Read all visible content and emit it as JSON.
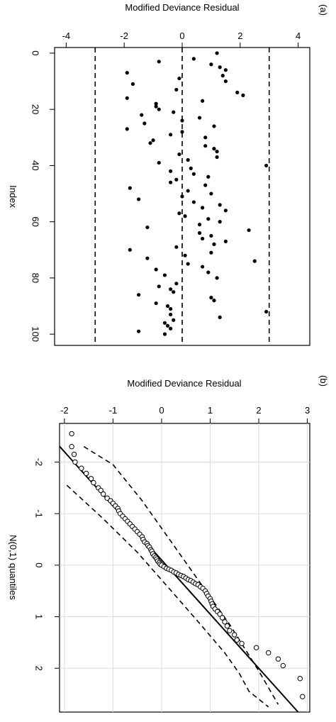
{
  "chart_data": [
    {
      "panel_label": "(a)",
      "type": "scatter",
      "title": "",
      "xlabel": "Modified Deviance Residual",
      "ylabel": "Index",
      "xlim": [
        -4.4,
        4.4
      ],
      "ylim": [
        -2,
        104
      ],
      "x_ticks": [
        -4,
        -2,
        0,
        2,
        4
      ],
      "y_ticks": [
        0,
        20,
        40,
        60,
        80,
        100
      ],
      "reference_lines": [
        -3,
        0,
        3
      ],
      "grid": false,
      "points": [
        [
          1.2,
          0
        ],
        [
          0.4,
          2
        ],
        [
          -0.8,
          3
        ],
        [
          1.0,
          4
        ],
        [
          1.3,
          5
        ],
        [
          1.5,
          6
        ],
        [
          -1.9,
          7
        ],
        [
          1.4,
          8
        ],
        [
          -0.1,
          9
        ],
        [
          1.5,
          10
        ],
        [
          -1.7,
          11
        ],
        [
          -0.2,
          13
        ],
        [
          1.9,
          14
        ],
        [
          2.1,
          15
        ],
        [
          -1.9,
          16
        ],
        [
          0.7,
          17
        ],
        [
          -0.9,
          18
        ],
        [
          -0.9,
          19
        ],
        [
          -0.8,
          20
        ],
        [
          -0.3,
          21
        ],
        [
          -1.4,
          22
        ],
        [
          0.6,
          23
        ],
        [
          0.0,
          24
        ],
        [
          -1.3,
          25
        ],
        [
          1.1,
          26
        ],
        [
          -1.9,
          27
        ],
        [
          0.0,
          28
        ],
        [
          -0.4,
          29
        ],
        [
          0.8,
          30
        ],
        [
          -1.0,
          31
        ],
        [
          -1.1,
          32
        ],
        [
          0.8,
          33
        ],
        [
          1.1,
          34
        ],
        [
          1.2,
          35
        ],
        [
          -0.1,
          36
        ],
        [
          1.2,
          37
        ],
        [
          0.2,
          38
        ],
        [
          -0.8,
          39
        ],
        [
          2.9,
          40
        ],
        [
          0.3,
          41
        ],
        [
          -0.4,
          42
        ],
        [
          0.4,
          43
        ],
        [
          0.9,
          44
        ],
        [
          -0.2,
          45
        ],
        [
          -0.4,
          46
        ],
        [
          0.8,
          47
        ],
        [
          -1.8,
          48
        ],
        [
          0.2,
          49
        ],
        [
          1.0,
          50
        ],
        [
          0.0,
          51
        ],
        [
          -1.5,
          52
        ],
        [
          0.4,
          53
        ],
        [
          1.3,
          54
        ],
        [
          0.7,
          55
        ],
        [
          1.5,
          56
        ],
        [
          -0.1,
          57
        ],
        [
          0.1,
          58
        ],
        [
          0.9,
          59
        ],
        [
          1.3,
          60
        ],
        [
          0.6,
          61
        ],
        [
          -1.2,
          62
        ],
        [
          2.3,
          63
        ],
        [
          0.6,
          64
        ],
        [
          1.0,
          65
        ],
        [
          0.7,
          66
        ],
        [
          1.5,
          67
        ],
        [
          1.1,
          68
        ],
        [
          -0.2,
          69
        ],
        [
          -1.8,
          70
        ],
        [
          1.0,
          71
        ],
        [
          0.1,
          72
        ],
        [
          -1.2,
          73
        ],
        [
          2.5,
          74
        ],
        [
          0.2,
          75
        ],
        [
          0.7,
          76
        ],
        [
          -0.9,
          77
        ],
        [
          0.9,
          78
        ],
        [
          -0.6,
          79
        ],
        [
          1.2,
          80
        ],
        [
          -0.2,
          82
        ],
        [
          -0.8,
          83
        ],
        [
          -0.4,
          84
        ],
        [
          -0.3,
          85
        ],
        [
          -1.5,
          86
        ],
        [
          1.0,
          87
        ],
        [
          1.1,
          88
        ],
        [
          -0.9,
          89
        ],
        [
          -0.5,
          90
        ],
        [
          -0.4,
          91
        ],
        [
          2.9,
          92
        ],
        [
          -0.4,
          93
        ],
        [
          1.3,
          94
        ],
        [
          -0.3,
          95
        ],
        [
          -0.6,
          96
        ],
        [
          -0.5,
          97
        ],
        [
          -0.4,
          98
        ],
        [
          -1.5,
          99
        ],
        [
          -0.6,
          100
        ]
      ]
    },
    {
      "panel_label": "(b)",
      "type": "scatter",
      "title": "",
      "xlabel": "Modified Deviance Residual",
      "ylabel": "N(0,1) quantiles",
      "xlim": [
        -2.1,
        3.05
      ],
      "ylim": [
        -2.75,
        2.85
      ],
      "x_ticks": [
        -2,
        -1,
        0,
        1,
        2,
        3
      ],
      "y_ticks": [
        -2,
        -1,
        0,
        1,
        2
      ],
      "grid": true,
      "reference_line": {
        "intercept": -0.1,
        "slope": 1.05
      },
      "envelope_lower": [
        [
          -1.6,
          -2.3
        ],
        [
          -1.0,
          -1.95
        ],
        [
          -0.4,
          -1.25
        ],
        [
          0.2,
          -0.45
        ],
        [
          0.8,
          0.35
        ],
        [
          1.4,
          1.15
        ],
        [
          1.7,
          1.6
        ],
        [
          2.0,
          2.05
        ],
        [
          2.4,
          2.7
        ]
      ],
      "envelope_upper": [
        [
          -1.95,
          -1.55
        ],
        [
          -1.2,
          -0.9
        ],
        [
          -0.5,
          -0.25
        ],
        [
          0.2,
          0.5
        ],
        [
          0.8,
          1.15
        ],
        [
          1.3,
          1.7
        ],
        [
          1.6,
          2.1
        ],
        [
          1.8,
          2.45
        ],
        [
          2.2,
          2.75
        ]
      ],
      "points": [
        [
          -1.85,
          -2.55
        ],
        [
          -1.85,
          -2.3
        ],
        [
          -1.8,
          -2.15
        ],
        [
          -1.78,
          -2.0
        ],
        [
          -1.65,
          -1.88
        ],
        [
          -1.55,
          -1.78
        ],
        [
          -1.45,
          -1.68
        ],
        [
          -1.4,
          -1.6
        ],
        [
          -1.3,
          -1.5
        ],
        [
          -1.25,
          -1.45
        ],
        [
          -1.2,
          -1.38
        ],
        [
          -1.12,
          -1.3
        ],
        [
          -1.05,
          -1.25
        ],
        [
          -1.0,
          -1.2
        ],
        [
          -0.95,
          -1.15
        ],
        [
          -0.9,
          -1.1
        ],
        [
          -0.88,
          -1.05
        ],
        [
          -0.85,
          -1.0
        ],
        [
          -0.8,
          -0.95
        ],
        [
          -0.75,
          -0.9
        ],
        [
          -0.7,
          -0.85
        ],
        [
          -0.65,
          -0.8
        ],
        [
          -0.6,
          -0.75
        ],
        [
          -0.55,
          -0.7
        ],
        [
          -0.5,
          -0.65
        ],
        [
          -0.45,
          -0.6
        ],
        [
          -0.4,
          -0.55
        ],
        [
          -0.38,
          -0.5
        ],
        [
          -0.35,
          -0.45
        ],
        [
          -0.3,
          -0.42
        ],
        [
          -0.28,
          -0.38
        ],
        [
          -0.25,
          -0.35
        ],
        [
          -0.22,
          -0.3
        ],
        [
          -0.2,
          -0.27
        ],
        [
          -0.18,
          -0.22
        ],
        [
          -0.15,
          -0.18
        ],
        [
          -0.12,
          -0.15
        ],
        [
          -0.1,
          -0.12
        ],
        [
          -0.08,
          -0.08
        ],
        [
          -0.05,
          -0.05
        ],
        [
          -0.03,
          -0.02
        ],
        [
          0.0,
          0.0
        ],
        [
          0.05,
          0.03
        ],
        [
          0.1,
          0.06
        ],
        [
          0.15,
          0.08
        ],
        [
          0.2,
          0.1
        ],
        [
          0.25,
          0.13
        ],
        [
          0.3,
          0.15
        ],
        [
          0.35,
          0.18
        ],
        [
          0.4,
          0.2
        ],
        [
          0.45,
          0.22
        ],
        [
          0.5,
          0.25
        ],
        [
          0.55,
          0.28
        ],
        [
          0.6,
          0.3
        ],
        [
          0.65,
          0.33
        ],
        [
          0.7,
          0.36
        ],
        [
          0.75,
          0.38
        ],
        [
          0.8,
          0.42
        ],
        [
          0.85,
          0.45
        ],
        [
          0.9,
          0.5
        ],
        [
          0.93,
          0.55
        ],
        [
          0.96,
          0.6
        ],
        [
          1.0,
          0.65
        ],
        [
          1.02,
          0.7
        ],
        [
          1.04,
          0.75
        ],
        [
          1.06,
          0.8
        ],
        [
          1.1,
          0.85
        ],
        [
          1.15,
          0.9
        ],
        [
          1.2,
          0.95
        ],
        [
          1.25,
          1.02
        ],
        [
          1.3,
          1.1
        ],
        [
          1.35,
          1.18
        ],
        [
          1.4,
          1.27
        ],
        [
          1.5,
          1.35
        ],
        [
          1.55,
          1.45
        ],
        [
          1.65,
          1.52
        ],
        [
          1.95,
          1.6
        ],
        [
          2.2,
          1.7
        ],
        [
          2.4,
          1.82
        ],
        [
          2.5,
          1.95
        ],
        [
          2.85,
          2.2
        ],
        [
          2.9,
          2.55
        ]
      ]
    }
  ]
}
